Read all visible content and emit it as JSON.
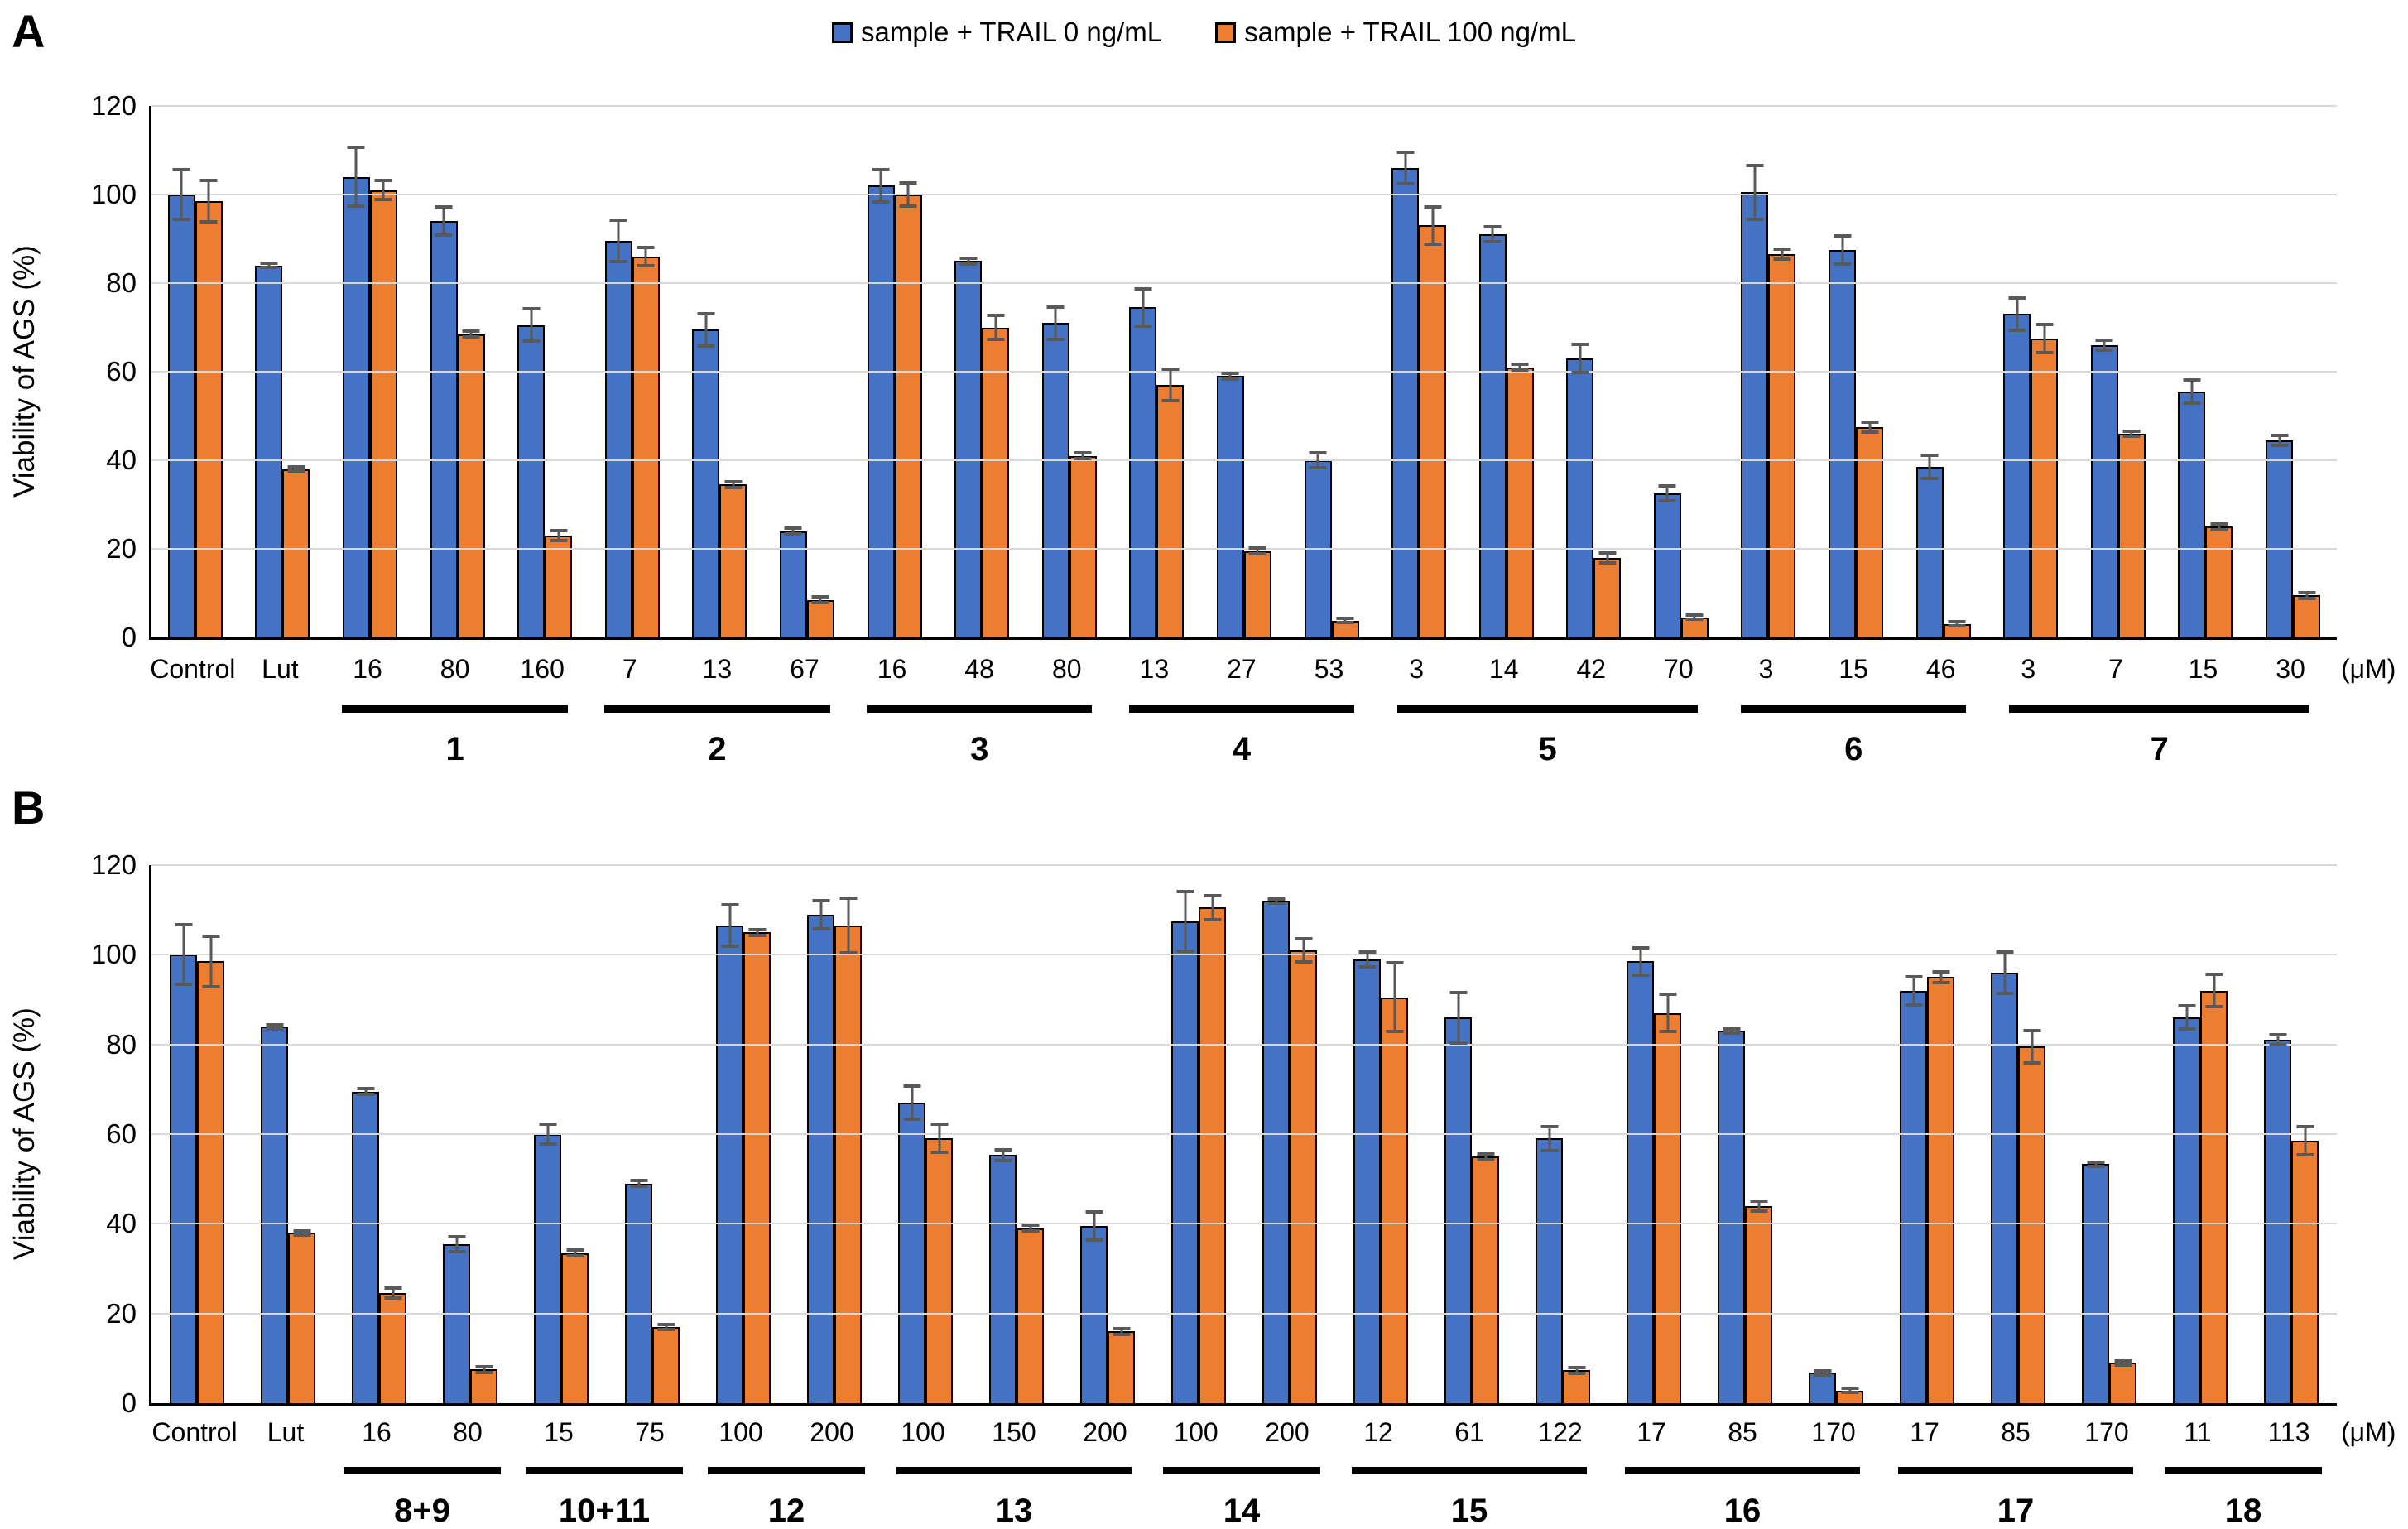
{
  "colors": {
    "series0": "#4472C4",
    "series1": "#ED7D31",
    "error_bar": "#595959",
    "gridline": "#D9D9D9",
    "axis": "#000000"
  },
  "legend": {
    "items": [
      {
        "label": "sample + TRAIL 0 ng/mL",
        "color": "#4472C4"
      },
      {
        "label": "sample + TRAIL 100 ng/mL",
        "color": "#ED7D31"
      }
    ]
  },
  "y_axis": {
    "title": "Viability of AGS (%)",
    "ticks": [
      0,
      20,
      40,
      60,
      80,
      100,
      120
    ],
    "min": 0,
    "max": 120
  },
  "unit_label": "(μM)",
  "chart_data": [
    {
      "type": "bar",
      "panel_label": "A",
      "ylabel": "Viability of AGS (%)",
      "ylim": [
        0,
        120
      ],
      "grid": true,
      "legend_position": "top-center",
      "categories": [
        "Control",
        "Lut",
        "16",
        "80",
        "160",
        "7",
        "13",
        "67",
        "16",
        "48",
        "80",
        "13",
        "27",
        "53",
        "3",
        "14",
        "42",
        "70",
        "3",
        "15",
        "46",
        "3",
        "7",
        "15",
        "30"
      ],
      "groups": [
        {
          "label": "",
          "count": 2,
          "underline": false
        },
        {
          "label": "1",
          "count": 3,
          "underline": true
        },
        {
          "label": "2",
          "count": 3,
          "underline": true
        },
        {
          "label": "3",
          "count": 3,
          "underline": true
        },
        {
          "label": "4",
          "count": 3,
          "underline": true
        },
        {
          "label": "5",
          "count": 4,
          "underline": true
        },
        {
          "label": "6",
          "count": 3,
          "underline": true
        },
        {
          "label": "7",
          "count": 4,
          "underline": true
        }
      ],
      "series": [
        {
          "name": "sample + TRAIL 0 ng/mL",
          "values": [
            100,
            84,
            104,
            94,
            70.5,
            89.5,
            69.5,
            24,
            102,
            85,
            71,
            74.5,
            59,
            40,
            106,
            91,
            63,
            32.5,
            100.5,
            87.5,
            38.5,
            73,
            66,
            55.5,
            44.5
          ],
          "errors": [
            6,
            0.5,
            7,
            3.5,
            4,
            5,
            4,
            1,
            4,
            1,
            4,
            4.5,
            1,
            2,
            4,
            2,
            3.5,
            2,
            6.5,
            3.5,
            3,
            4,
            1.5,
            3,
            1.5
          ]
        },
        {
          "name": "sample + TRAIL 100 ng/mL",
          "values": [
            98.5,
            38,
            101,
            68.5,
            23,
            86,
            34.5,
            8.5,
            100,
            70,
            41,
            57,
            19.5,
            3.8,
            93,
            61,
            18,
            4.5,
            86.5,
            47.5,
            3,
            67.5,
            46,
            25,
            9.5
          ],
          "errors": [
            5,
            0.5,
            2.5,
            1,
            1.5,
            2.5,
            1,
            1,
            3,
            3,
            1,
            4,
            1,
            0.5,
            4.5,
            1,
            1.5,
            0.5,
            1.5,
            1.5,
            0.5,
            3.5,
            1,
            1,
            1
          ]
        }
      ]
    },
    {
      "type": "bar",
      "panel_label": "B",
      "ylabel": "Viability of AGS (%)",
      "ylim": [
        0,
        120
      ],
      "grid": true,
      "legend_position": "top-center",
      "categories": [
        "Control",
        "Lut",
        "16",
        "80",
        "15",
        "75",
        "100",
        "200",
        "100",
        "150",
        "200",
        "100",
        "200",
        "12",
        "61",
        "122",
        "17",
        "85",
        "170",
        "17",
        "85",
        "170",
        "11",
        "113"
      ],
      "groups": [
        {
          "label": "",
          "count": 2,
          "underline": false
        },
        {
          "label": "8+9",
          "count": 2,
          "underline": true
        },
        {
          "label": "10+11",
          "count": 2,
          "underline": true
        },
        {
          "label": "12",
          "count": 2,
          "underline": true
        },
        {
          "label": "13",
          "count": 3,
          "underline": true
        },
        {
          "label": "14",
          "count": 2,
          "underline": true
        },
        {
          "label": "15",
          "count": 3,
          "underline": true
        },
        {
          "label": "16",
          "count": 3,
          "underline": true
        },
        {
          "label": "17",
          "count": 3,
          "underline": true
        },
        {
          "label": "18",
          "count": 2,
          "underline": true
        }
      ],
      "series": [
        {
          "name": "sample + TRAIL 0 ng/mL",
          "values": [
            100,
            84,
            69.5,
            35.5,
            60,
            49,
            106.5,
            109,
            67,
            55.3,
            39.5,
            107.5,
            112,
            99,
            86,
            59,
            98.5,
            83,
            6.8,
            92,
            96,
            53.3,
            86,
            81
          ],
          "errors": [
            7,
            0.5,
            1,
            2,
            2.5,
            1,
            5,
            3.5,
            4,
            1.5,
            3.5,
            7,
            0.5,
            2,
            6,
            3,
            3.5,
            0.5,
            0.5,
            3.5,
            5,
            0.5,
            3,
            1.5
          ]
        },
        {
          "name": "sample + TRAIL 100 ng/mL",
          "values": [
            98.5,
            38,
            24.5,
            7.5,
            33.5,
            17,
            105,
            106.5,
            59,
            39,
            16,
            110.5,
            101,
            90.5,
            55,
            7.3,
            87,
            44,
            2.8,
            95,
            79.5,
            9,
            92,
            58.5
          ],
          "errors": [
            6,
            0.5,
            1.5,
            1,
            1,
            1,
            1,
            6.5,
            3.5,
            1,
            1,
            3,
            3,
            8,
            1,
            1,
            4.5,
            1.5,
            0.5,
            1.5,
            4,
            0.5,
            4,
            3.5
          ]
        }
      ]
    }
  ]
}
